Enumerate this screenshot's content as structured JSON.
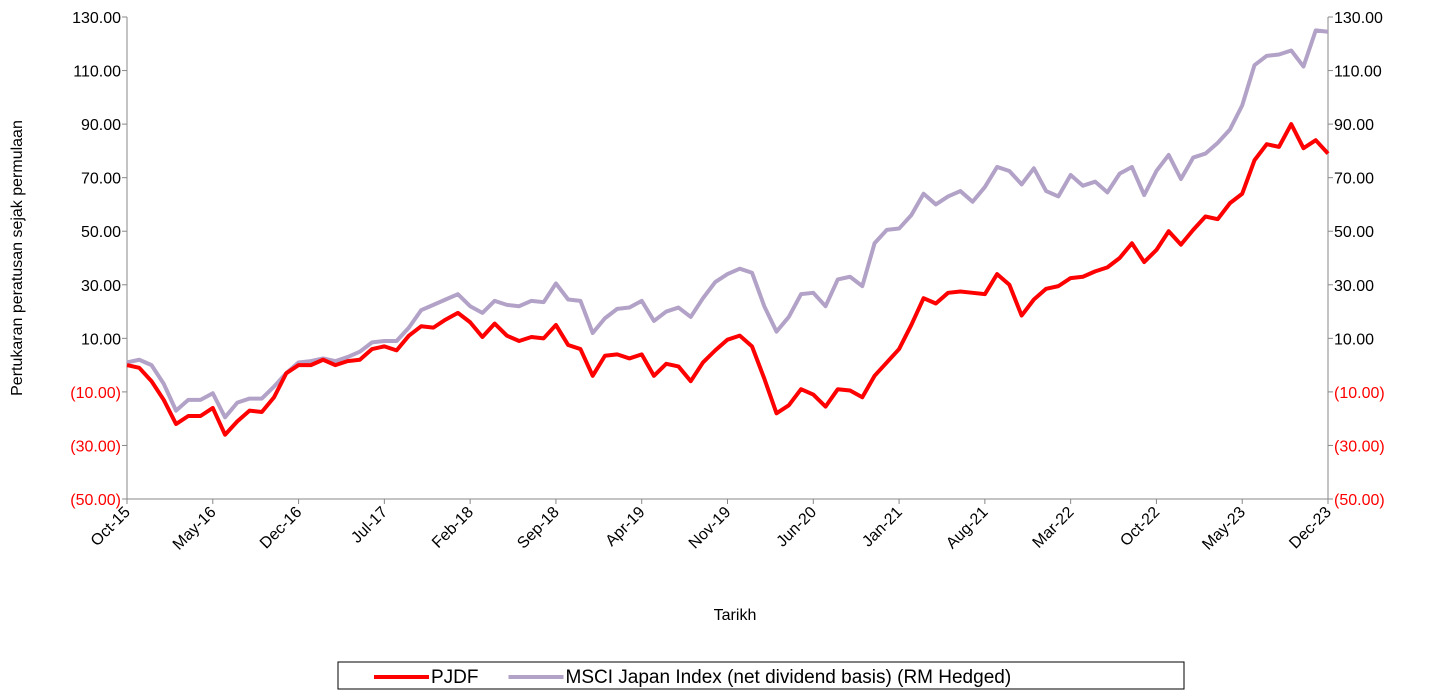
{
  "chart_data": {
    "type": "line",
    "x_label": "Tarikh",
    "y_label": "Pertukaran peratusan sejak permulaan",
    "categories": [
      "Oct-15",
      null,
      null,
      null,
      null,
      null,
      null,
      "May-16",
      null,
      null,
      null,
      null,
      null,
      null,
      "Dec-16",
      null,
      null,
      null,
      null,
      null,
      null,
      "Jul-17",
      null,
      null,
      null,
      null,
      null,
      null,
      "Feb-18",
      null,
      null,
      null,
      null,
      null,
      null,
      "Sep-18",
      null,
      null,
      null,
      null,
      null,
      null,
      "Apr-19",
      null,
      null,
      null,
      null,
      null,
      null,
      "Nov-19",
      null,
      null,
      null,
      null,
      null,
      null,
      "Jun-20",
      null,
      null,
      null,
      null,
      null,
      null,
      "Jan-21",
      null,
      null,
      null,
      null,
      null,
      null,
      "Aug-21",
      null,
      null,
      null,
      null,
      null,
      null,
      "Mar-22",
      null,
      null,
      null,
      null,
      null,
      null,
      "Oct-22",
      null,
      null,
      null,
      null,
      null,
      null,
      "May-23",
      null,
      null,
      null,
      null,
      null,
      null,
      "Dec-23"
    ],
    "series": [
      {
        "name": "PJDF",
        "color": "#ff0000",
        "values": [
          0,
          -1,
          -6,
          -13,
          -22,
          -19,
          -19,
          -16,
          -26,
          -21,
          -17,
          -17.5,
          -12,
          -3,
          0,
          0,
          2,
          0,
          1.5,
          2,
          6,
          7,
          5.5,
          11,
          14.5,
          14,
          17,
          19.5,
          16,
          10.5,
          15.5,
          11,
          9,
          10.5,
          10,
          15,
          7.5,
          6,
          -4,
          3.5,
          4,
          2.5,
          4,
          -4,
          0.5,
          -0.5,
          -6,
          1,
          5.5,
          9.5,
          11,
          7,
          -5,
          -18,
          -15,
          -9,
          -11,
          -15.5,
          -9,
          -9.5,
          -12,
          -4,
          1,
          6,
          15,
          25,
          23,
          27,
          27.5,
          27,
          26.5,
          34,
          30,
          18.5,
          24.5,
          28.5,
          29.5,
          32.5,
          33,
          35,
          36.5,
          40,
          45.5,
          38.5,
          43,
          50,
          45,
          50.5,
          55.5,
          54.5,
          60.5,
          64,
          76.5,
          82.5,
          81.5,
          90,
          81,
          84,
          79
        ]
      },
      {
        "name": "MSCI Japan Index (net dividend basis) (RM Hedged)",
        "color": "#b3a2c7",
        "axis": "y2",
        "values": [
          1,
          2,
          0,
          -7,
          -17,
          -13,
          -13,
          -10.5,
          -19.5,
          -14,
          -12.5,
          -12.5,
          -8,
          -3,
          1,
          1.5,
          2.5,
          1.5,
          3,
          5,
          8.5,
          9,
          9,
          14,
          20.5,
          22.5,
          24.5,
          26.5,
          22,
          19.5,
          24,
          22.5,
          22,
          24,
          23.5,
          30.5,
          24.5,
          24,
          12,
          17.5,
          21,
          21.5,
          24,
          16.5,
          20,
          21.5,
          18,
          25,
          31,
          34,
          36,
          34.5,
          22,
          12.5,
          18,
          26.5,
          27,
          22,
          32,
          33,
          29.5,
          45.5,
          50.5,
          51,
          56,
          64,
          60,
          63,
          65,
          61,
          66.5,
          74,
          72.5,
          67.5,
          73.5,
          65,
          63,
          71,
          67,
          68.5,
          64.5,
          71.5,
          74,
          63.5,
          72.5,
          78.5,
          69.5,
          77.5,
          79,
          83,
          88,
          97,
          112,
          115.5,
          116,
          117.5,
          111.5,
          125,
          124.5
        ]
      }
    ],
    "ylim": [
      -50,
      130
    ],
    "yticks": [
      {
        "value": -50,
        "label": "(50.00)"
      },
      {
        "value": -30,
        "label": "(30.00)"
      },
      {
        "value": -10,
        "label": "(10.00)"
      },
      {
        "value": 10,
        "label": "10.00"
      },
      {
        "value": 30,
        "label": "30.00"
      },
      {
        "value": 50,
        "label": "50.00"
      },
      {
        "value": 70,
        "label": "70.00"
      },
      {
        "value": 90,
        "label": "90.00"
      },
      {
        "value": 110,
        "label": "110.00"
      },
      {
        "value": 130,
        "label": "130.00"
      }
    ],
    "y2lim": [
      -50,
      130
    ],
    "y2ticks": [
      {
        "value": -50,
        "label": "(50.00)"
      },
      {
        "value": -30,
        "label": "(30.00)"
      },
      {
        "value": -10,
        "label": "(10.00)"
      },
      {
        "value": 10,
        "label": "10.00"
      },
      {
        "value": 30,
        "label": "30.00"
      },
      {
        "value": 50,
        "label": "50.00"
      },
      {
        "value": 70,
        "label": "70.00"
      },
      {
        "value": 90,
        "label": "90.00"
      },
      {
        "value": 110,
        "label": "110.00"
      },
      {
        "value": 130,
        "label": "130.00"
      }
    ],
    "negative_tick_color": "#ff0000",
    "grid": false,
    "legend": "bottom"
  }
}
